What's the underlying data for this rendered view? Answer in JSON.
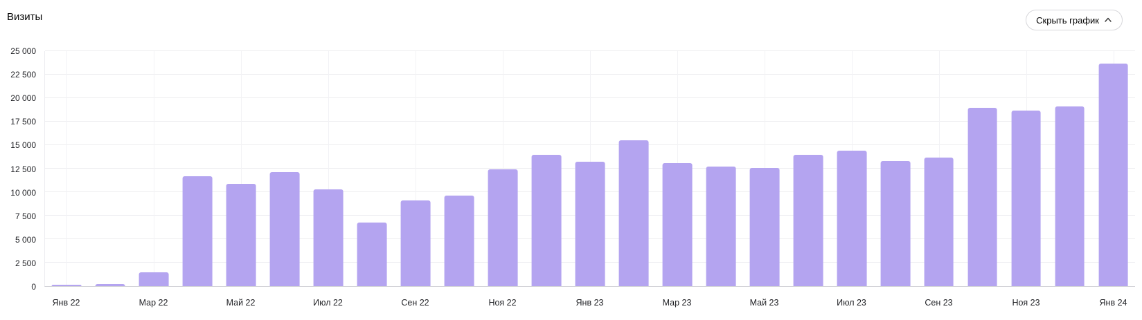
{
  "header": {
    "title": "Визиты",
    "toggle_button": {
      "label": "Скрыть график",
      "icon": "chevron-up-icon"
    }
  },
  "chart_data": {
    "type": "bar",
    "title": "Визиты",
    "bar_color": "#b4a4f0",
    "grid": true,
    "legend": "none",
    "ylim": [
      0,
      25000
    ],
    "y_ticks": [
      {
        "label": "0",
        "value": 0
      },
      {
        "label": "2 500",
        "value": 2500
      },
      {
        "label": "5 000",
        "value": 5000
      },
      {
        "label": "7 500",
        "value": 7500
      },
      {
        "label": "10 000",
        "value": 10000
      },
      {
        "label": "12 500",
        "value": 12500
      },
      {
        "label": "15 000",
        "value": 15000
      },
      {
        "label": "17 500",
        "value": 17500
      },
      {
        "label": "20 000",
        "value": 20000
      },
      {
        "label": "22 500",
        "value": 22500
      },
      {
        "label": "25 000",
        "value": 25000
      }
    ],
    "categories": [
      "Янв 22",
      "",
      "Мар 22",
      "",
      "Май 22",
      "",
      "Июл 22",
      "",
      "Сен 22",
      "",
      "Ноя 22",
      "",
      "Янв 23",
      "",
      "Мар 23",
      "",
      "Май 23",
      "",
      "Июл 23",
      "",
      "Сен 23",
      "",
      "Ноя 23",
      "",
      "Янв 24"
    ],
    "values": [
      150,
      200,
      1500,
      11700,
      10900,
      12100,
      10300,
      6800,
      9100,
      9600,
      12400,
      14000,
      13200,
      15500,
      13100,
      12700,
      12600,
      14000,
      14400,
      13300,
      13700,
      19000,
      18700,
      19100,
      23700
    ]
  }
}
